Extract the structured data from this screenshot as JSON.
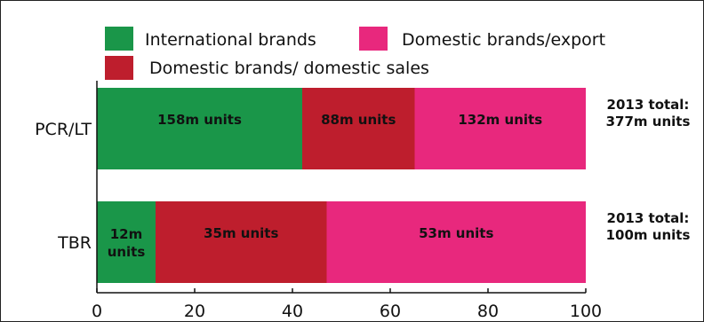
{
  "chart_data": {
    "type": "bar",
    "orientation": "horizontal",
    "stacked": true,
    "categories": [
      "PCR/LT",
      "TBR"
    ],
    "series": [
      {
        "name": "International brands",
        "color": "#1a9649",
        "values": [
          42,
          12
        ],
        "labels": [
          "158m units",
          "12m units"
        ]
      },
      {
        "name": "Domestic brands/ domestic sales",
        "color": "#be1e2d",
        "values": [
          23,
          35
        ],
        "labels": [
          "88m units",
          "35m units"
        ]
      },
      {
        "name": "Domestic brands/export",
        "color": "#e8287d",
        "values": [
          35,
          53
        ],
        "labels": [
          "132m units",
          "53m units"
        ]
      }
    ],
    "totals": [
      [
        "2013 total:",
        "377m units"
      ],
      [
        "2013 total:",
        "100m units"
      ]
    ],
    "xlim": [
      0,
      100
    ],
    "xticks": [
      0,
      20,
      40,
      60,
      80,
      100
    ],
    "grid": false,
    "legend_position": "top"
  }
}
